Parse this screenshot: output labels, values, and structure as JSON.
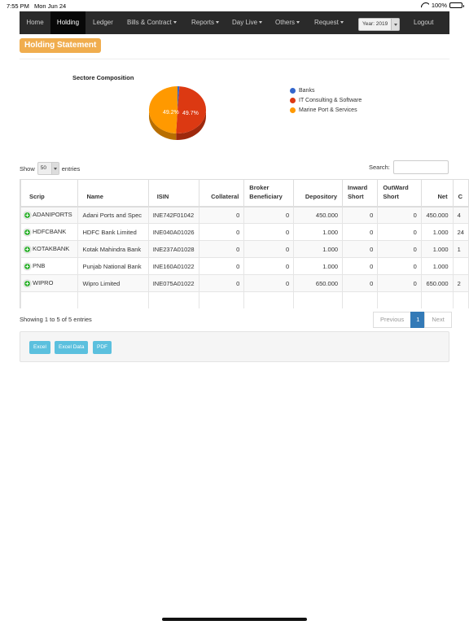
{
  "status_bar": {
    "time": "7:55 PM",
    "date": "Mon Jun 24",
    "battery": "100%"
  },
  "navbar": {
    "items": [
      {
        "label": "Home"
      },
      {
        "label": "Holding"
      },
      {
        "label": "Ledger"
      },
      {
        "label": "Bills & Contract"
      },
      {
        "label": "Reports"
      },
      {
        "label": "Day Live"
      },
      {
        "label": "Others"
      },
      {
        "label": "Request"
      }
    ],
    "active_item": "Holding",
    "year_select": "Year: 2019",
    "logout": "Logout",
    "background": "#2a2a2a"
  },
  "page": {
    "title": "Holding Statement",
    "title_color": "#f0ad4e"
  },
  "chart": {
    "title": "Sectore Composition",
    "slice_labels": [
      "49.2%",
      "49.7%"
    ],
    "legend": [
      {
        "label": "Banks",
        "color": "#3366cc"
      },
      {
        "label": "IT Consulting & Software",
        "color": "#dc3912"
      },
      {
        "label": "Marine Port & Services",
        "color": "#ff9900"
      }
    ]
  },
  "chart_data": {
    "type": "pie",
    "title": "Sectore Composition",
    "categories": [
      "Banks",
      "IT Consulting & Software",
      "Marine Port & Services"
    ],
    "values": [
      1.1,
      49.7,
      49.2
    ],
    "colors": [
      "#3366cc",
      "#dc3912",
      "#ff9900"
    ]
  },
  "table_controls": {
    "show_label": "Show",
    "entries_value": "50",
    "entries_label": "entries",
    "search_label": "Search:",
    "search_value": ""
  },
  "table": {
    "columns": [
      "Scrip",
      "Name",
      "ISIN",
      "Collateral",
      "Broker Beneficiary",
      "Depository",
      "Inward Short",
      "OutWard Short",
      "Net",
      "C"
    ],
    "rows": [
      {
        "scrip": "ADANIPORTS",
        "name": "Adani Ports and Spec",
        "isin": "INE742F01042",
        "collateral": "0",
        "broker": "0",
        "depository": "450.000",
        "inward": "0",
        "outward": "0",
        "net": "450.000",
        "extra": "4"
      },
      {
        "scrip": "HDFCBANK",
        "name": "HDFC Bank Limited",
        "isin": "INE040A01026",
        "collateral": "0",
        "broker": "0",
        "depository": "1.000",
        "inward": "0",
        "outward": "0",
        "net": "1.000",
        "extra": "24"
      },
      {
        "scrip": "KOTAKBANK",
        "name": "Kotak Mahindra Bank",
        "isin": "INE237A01028",
        "collateral": "0",
        "broker": "0",
        "depository": "1.000",
        "inward": "0",
        "outward": "0",
        "net": "1.000",
        "extra": "1"
      },
      {
        "scrip": "PNB",
        "name": "Punjab National Bank",
        "isin": "INE160A01022",
        "collateral": "0",
        "broker": "0",
        "depository": "1.000",
        "inward": "0",
        "outward": "0",
        "net": "1.000",
        "extra": ""
      },
      {
        "scrip": "WIPRO",
        "name": "Wipro Limited",
        "isin": "INE075A01022",
        "collateral": "0",
        "broker": "0",
        "depository": "650.000",
        "inward": "0",
        "outward": "0",
        "net": "650.000",
        "extra": "2"
      }
    ]
  },
  "footer": {
    "info": "Showing 1 to 5 of 5 entries",
    "previous": "Previous",
    "page": "1",
    "next": "Next"
  },
  "export": {
    "buttons": [
      "Excel",
      "Excel Data",
      "PDF"
    ],
    "color": "#5bc0de"
  }
}
